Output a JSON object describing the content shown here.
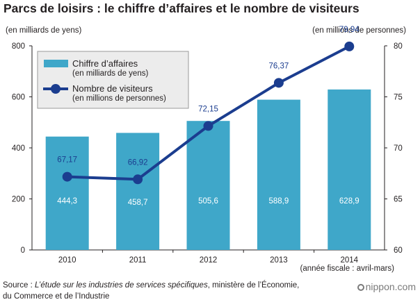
{
  "title": "Parcs de loisirs : le chiffre d’affaires et le nombre de visiteurs",
  "unit_left": "(en milliards de yens)",
  "unit_right": "(en millions de personnes)",
  "fiscal_note": "(année fiscale : avril-mars)",
  "source": {
    "prefix": "Source : ",
    "italic": "L’étude sur les industries de services spécifiques",
    "rest_line1": ", ministère de l’Économie,",
    "line2": "du Commerce et de l’Industrie"
  },
  "brand": "nippon.com",
  "colors": {
    "bar": "#3fa7c9",
    "line": "#1b3d8f",
    "text_dark": "#231f20",
    "label_blue": "#1b3d8f",
    "legend_bg": "#ececec"
  },
  "chart_data": {
    "type": "bar+line",
    "categories": [
      "2010",
      "2011",
      "2012",
      "2013",
      "2014"
    ],
    "series": [
      {
        "name": "Chiffre d’affaires",
        "name_line2": "(en milliards de yens)",
        "type": "bar",
        "axis": "left",
        "values": [
          444.3,
          458.7,
          505.6,
          588.9,
          628.9
        ],
        "labels": [
          "444,3",
          "458,7",
          "505,6",
          "588,9",
          "628,9"
        ]
      },
      {
        "name": "Nombre de visiteurs",
        "name_line2": "(en millions de personnes)",
        "type": "line",
        "axis": "right",
        "values": [
          67.17,
          66.92,
          72.15,
          76.37,
          79.94
        ],
        "labels": [
          "67,17",
          "66,92",
          "72,15",
          "76,37",
          "79,94"
        ]
      }
    ],
    "y_left": {
      "min": 0,
      "max": 800,
      "ticks": [
        0,
        200,
        400,
        600,
        800
      ]
    },
    "y_right": {
      "min": 60,
      "max": 80,
      "ticks": [
        60,
        65,
        70,
        75,
        80
      ]
    },
    "grid": false,
    "legend_position": "top-left"
  }
}
